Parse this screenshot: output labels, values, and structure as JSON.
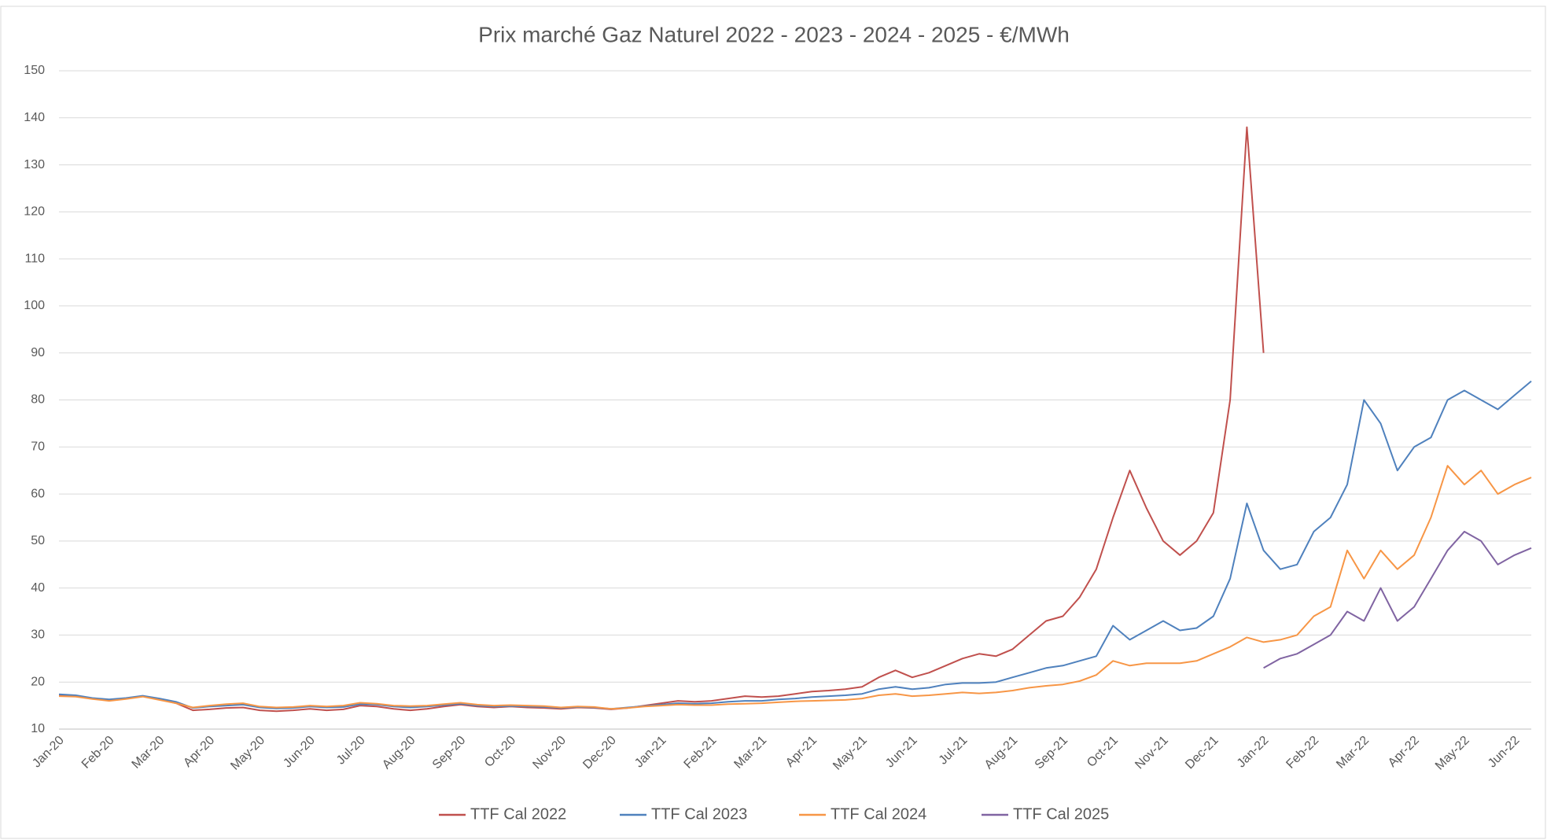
{
  "chart_data": {
    "type": "line",
    "title": "Prix marché Gaz Naturel 2022 - 2023 - 2024 - 2025 - €/MWh",
    "categories": [
      "Jan-20",
      null,
      null,
      "Feb-20",
      null,
      null,
      "Mar-20",
      null,
      null,
      "Apr-20",
      null,
      null,
      "May-20",
      null,
      null,
      "Jun-20",
      null,
      null,
      "Jul-20",
      null,
      null,
      "Aug-20",
      null,
      null,
      "Sep-20",
      null,
      null,
      "Oct-20",
      null,
      null,
      "Nov-20",
      null,
      null,
      "Dec-20",
      null,
      null,
      "Jan-21",
      null,
      null,
      "Feb-21",
      null,
      null,
      "Mar-21",
      null,
      null,
      "Apr-21",
      null,
      null,
      "May-21",
      null,
      null,
      "Jun-21",
      null,
      null,
      "Jul-21",
      null,
      null,
      "Aug-21",
      null,
      null,
      "Sep-21",
      null,
      null,
      "Oct-21",
      null,
      null,
      "Nov-21",
      null,
      null,
      "Dec-21",
      null,
      null,
      "Jan-22",
      null,
      null,
      "Feb-22",
      null,
      null,
      "Mar-22",
      null,
      null,
      "Apr-22",
      null,
      null,
      "May-22",
      null,
      null,
      "Jun-22",
      null
    ],
    "series": [
      {
        "name": "TTF Cal 2022",
        "color": "#c0504d",
        "values": [
          17.2,
          17.0,
          16.5,
          16.2,
          16.5,
          17.0,
          16.3,
          15.5,
          14.0,
          14.2,
          14.5,
          14.6,
          14.0,
          13.8,
          14.0,
          14.3,
          14.0,
          14.2,
          15.0,
          14.8,
          14.3,
          14.0,
          14.3,
          14.8,
          15.2,
          14.8,
          14.6,
          14.8,
          14.6,
          14.5,
          14.3,
          14.6,
          14.5,
          14.2,
          14.5,
          15.0,
          15.5,
          16.0,
          15.8,
          16.0,
          16.5,
          17.0,
          16.8,
          17.0,
          17.5,
          18.0,
          18.2,
          18.5,
          19.0,
          21.0,
          22.5,
          21.0,
          22.0,
          23.5,
          25.0,
          26.0,
          25.5,
          27.0,
          30.0,
          33.0,
          34.0,
          38.0,
          44.0,
          55.0,
          65.0,
          57.0,
          50.0,
          47.0,
          50.0,
          56.0,
          80.0,
          138.0,
          90.0,
          null,
          null,
          null,
          null,
          null,
          null,
          null,
          null,
          null,
          null,
          null,
          null,
          null,
          null,
          null,
          null
        ]
      },
      {
        "name": "TTF Cal 2023",
        "color": "#4f81bd",
        "values": [
          17.4,
          17.2,
          16.6,
          16.3,
          16.6,
          17.1,
          16.5,
          15.8,
          14.5,
          14.8,
          15.0,
          15.2,
          14.6,
          14.4,
          14.5,
          14.8,
          14.6,
          14.7,
          15.3,
          15.2,
          14.8,
          14.6,
          14.8,
          15.1,
          15.4,
          15.0,
          14.8,
          14.9,
          14.8,
          14.7,
          14.5,
          14.7,
          14.6,
          14.3,
          14.6,
          14.9,
          15.2,
          15.5,
          15.4,
          15.5,
          15.8,
          16.0,
          16.0,
          16.3,
          16.5,
          16.8,
          17.0,
          17.2,
          17.5,
          18.5,
          19.0,
          18.5,
          18.8,
          19.5,
          19.8,
          19.8,
          20.0,
          21.0,
          22.0,
          23.0,
          23.5,
          24.5,
          25.5,
          32.0,
          29.0,
          31.0,
          33.0,
          31.0,
          31.5,
          34.0,
          42.0,
          58.0,
          48.0,
          44.0,
          45.0,
          52.0,
          55.0,
          62.0,
          80.0,
          75.0,
          65.0,
          70.0,
          72.0,
          80.0,
          82.0,
          80.0,
          78.0,
          81.0,
          84.0
        ]
      },
      {
        "name": "TTF Cal 2024",
        "color": "#f79646",
        "values": [
          17.0,
          16.9,
          16.4,
          16.0,
          16.4,
          16.9,
          16.2,
          15.5,
          14.6,
          15.0,
          15.3,
          15.5,
          14.8,
          14.6,
          14.7,
          15.0,
          14.8,
          15.0,
          15.6,
          15.4,
          15.0,
          14.9,
          15.0,
          15.3,
          15.6,
          15.2,
          15.0,
          15.1,
          15.0,
          14.9,
          14.6,
          14.8,
          14.7,
          14.3,
          14.5,
          14.8,
          15.0,
          15.2,
          15.1,
          15.1,
          15.3,
          15.4,
          15.5,
          15.7,
          15.9,
          16.0,
          16.1,
          16.2,
          16.5,
          17.2,
          17.5,
          17.0,
          17.2,
          17.5,
          17.8,
          17.6,
          17.8,
          18.2,
          18.8,
          19.2,
          19.5,
          20.2,
          21.5,
          24.5,
          23.5,
          24.0,
          24.0,
          24.0,
          24.5,
          26.0,
          27.5,
          29.5,
          28.5,
          29.0,
          30.0,
          34.0,
          36.0,
          48.0,
          42.0,
          48.0,
          44.0,
          47.0,
          55.0,
          66.0,
          62.0,
          65.0,
          60.0,
          62.0,
          63.5
        ]
      },
      {
        "name": "TTF Cal 2025",
        "color": "#8064a2",
        "values": [
          null,
          null,
          null,
          null,
          null,
          null,
          null,
          null,
          null,
          null,
          null,
          null,
          null,
          null,
          null,
          null,
          null,
          null,
          null,
          null,
          null,
          null,
          null,
          null,
          null,
          null,
          null,
          null,
          null,
          null,
          null,
          null,
          null,
          null,
          null,
          null,
          null,
          null,
          null,
          null,
          null,
          null,
          null,
          null,
          null,
          null,
          null,
          null,
          null,
          null,
          null,
          null,
          null,
          null,
          null,
          null,
          null,
          null,
          null,
          null,
          null,
          null,
          null,
          null,
          null,
          null,
          null,
          null,
          null,
          null,
          null,
          null,
          23.0,
          25.0,
          26.0,
          28.0,
          30.0,
          35.0,
          33.0,
          40.0,
          33.0,
          36.0,
          42.0,
          48.0,
          52.0,
          50.0,
          45.0,
          47.0,
          48.5
        ]
      }
    ],
    "ylim": [
      10,
      150
    ],
    "yticks": [
      10,
      20,
      30,
      40,
      50,
      60,
      70,
      80,
      90,
      100,
      110,
      120,
      130,
      140,
      150
    ],
    "grid": true,
    "legend": "bottom"
  }
}
